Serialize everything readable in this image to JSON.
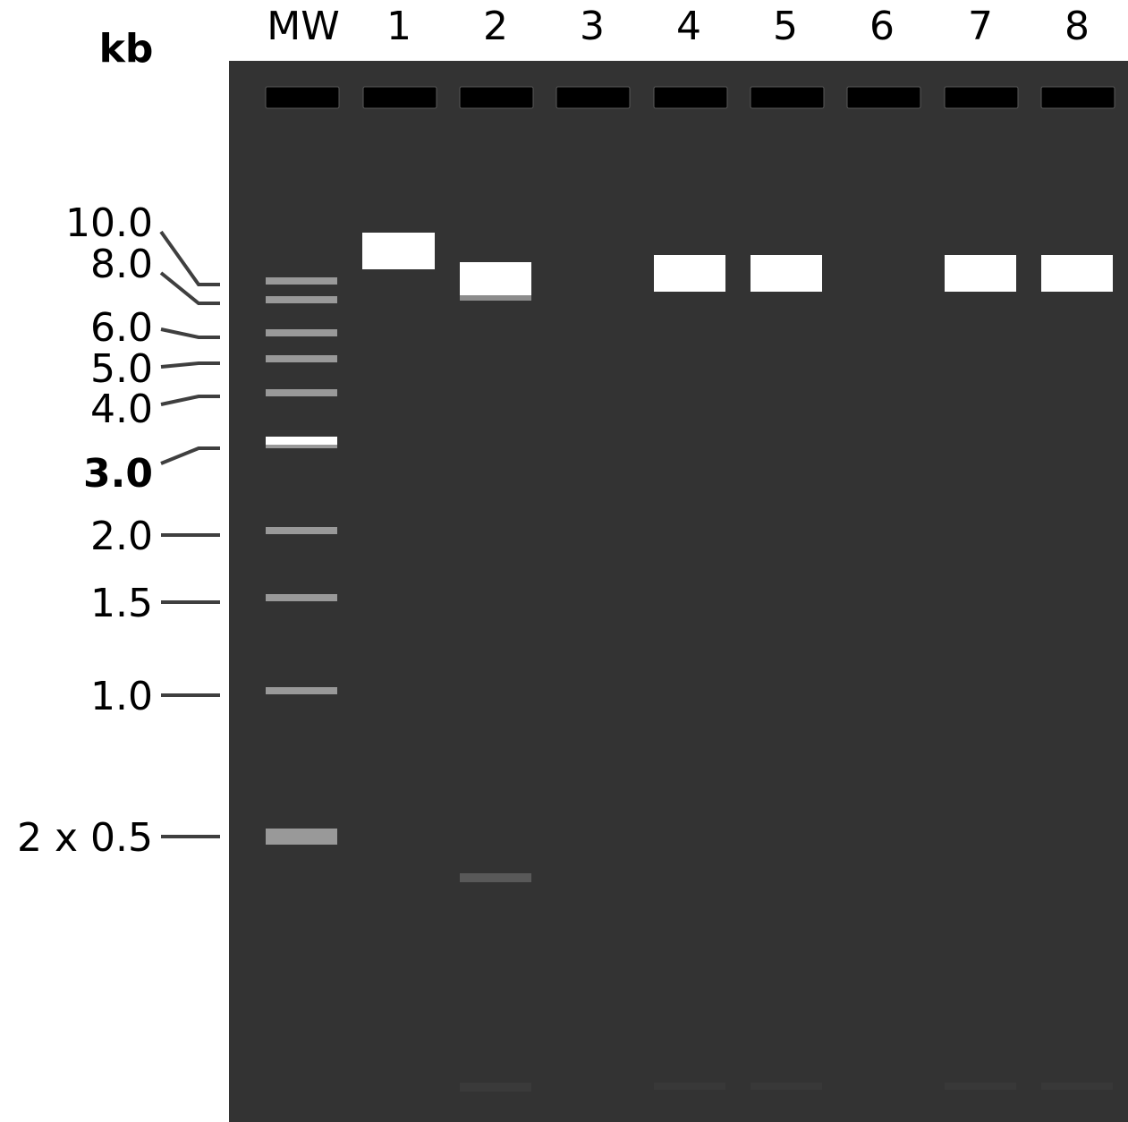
{
  "unit_label": "kb",
  "lanes": [
    {
      "label": "MW"
    },
    {
      "label": "1"
    },
    {
      "label": "2"
    },
    {
      "label": "3"
    },
    {
      "label": "4"
    },
    {
      "label": "5"
    },
    {
      "label": "6"
    },
    {
      "label": "7"
    },
    {
      "label": "8"
    }
  ],
  "marker_sizes": [
    {
      "label": "10.0",
      "bold": false
    },
    {
      "label": "8.0",
      "bold": false
    },
    {
      "label": "6.0",
      "bold": false
    },
    {
      "label": "5.0",
      "bold": false
    },
    {
      "label": "4.0",
      "bold": false
    },
    {
      "label": "3.0",
      "bold": true
    },
    {
      "label": "2.0",
      "bold": false
    },
    {
      "label": "1.5",
      "bold": false
    },
    {
      "label": "1.0",
      "bold": false
    },
    {
      "label": "2 x 0.5",
      "bold": false
    }
  ],
  "colors": {
    "gel_background": "#333333",
    "well": "#000000",
    "ladder_band": "#999999",
    "reference_band": "#ffffff",
    "sample_band": "#ffffff",
    "faint_band": "#595959",
    "leader_line": "#3f3f3f",
    "text": "#000000"
  }
}
